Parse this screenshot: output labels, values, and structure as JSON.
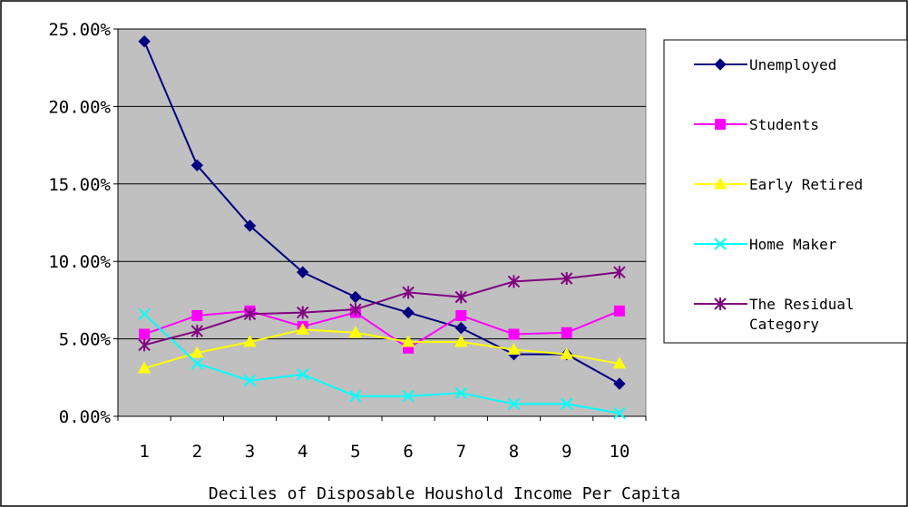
{
  "chart_data": {
    "type": "line",
    "title": "",
    "xlabel": "Deciles of Disposable Houshold Income Per Capita",
    "ylabel": "",
    "x": [
      "1",
      "2",
      "3",
      "4",
      "5",
      "6",
      "7",
      "8",
      "9",
      "10"
    ],
    "ylim": [
      0,
      25
    ],
    "yticks": [
      {
        "value": 0,
        "label": "0.00%"
      },
      {
        "value": 5,
        "label": "5.00%"
      },
      {
        "value": 10,
        "label": "10.00%"
      },
      {
        "value": 15,
        "label": "15.00%"
      },
      {
        "value": 20,
        "label": "20.00%"
      },
      {
        "value": 25,
        "label": "25.00%"
      }
    ],
    "grid": true,
    "plot_background": "#c0c0c0",
    "legend_position": "right",
    "series": [
      {
        "name": "Unemployed",
        "color": "#000080",
        "marker": "diamond",
        "values": [
          24.2,
          16.2,
          12.3,
          9.3,
          7.7,
          6.7,
          5.7,
          4.0,
          4.0,
          2.1
        ]
      },
      {
        "name": "Students",
        "color": "#ff00ff",
        "marker": "square",
        "values": [
          5.3,
          6.5,
          6.8,
          5.8,
          6.7,
          4.4,
          6.5,
          5.3,
          5.4,
          6.8
        ]
      },
      {
        "name": "Early Retired",
        "color": "#ffff00",
        "marker": "triangle",
        "values": [
          3.1,
          4.1,
          4.8,
          5.6,
          5.4,
          4.8,
          4.8,
          4.3,
          4.0,
          3.4
        ]
      },
      {
        "name": "Home Maker",
        "color": "#00ffff",
        "marker": "x",
        "values": [
          6.6,
          3.4,
          2.3,
          2.7,
          1.3,
          1.3,
          1.5,
          0.8,
          0.8,
          0.2
        ]
      },
      {
        "name": "The Residual Category",
        "legend_lines": [
          "The Residual",
          "Category"
        ],
        "color": "#800080",
        "marker": "star",
        "values": [
          4.6,
          5.5,
          6.6,
          6.7,
          6.9,
          8.0,
          7.7,
          8.7,
          8.9,
          9.3
        ]
      }
    ]
  }
}
